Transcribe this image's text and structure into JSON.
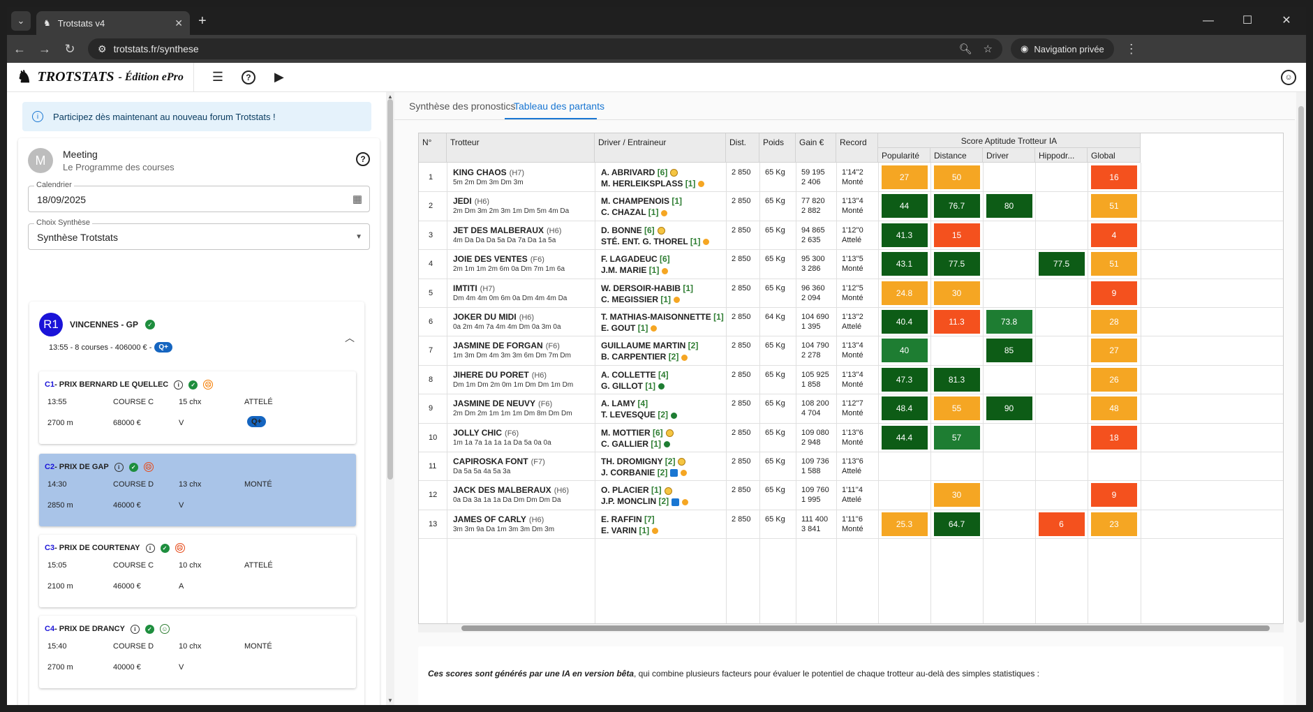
{
  "browser": {
    "tab_title": "Trotstats v4",
    "url": "trotstats.fr/synthese",
    "private_label": "Navigation privée"
  },
  "app": {
    "brand": "TROTSTATS",
    "edition": "- Édition ePro"
  },
  "info_banner": "Participez dès maintenant au nouveau forum Trotstats !",
  "meeting": {
    "avatar": "M",
    "title": "Meeting",
    "subtitle": "Le Programme des courses",
    "calendar_label": "Calendrier",
    "calendar_value": "18/09/2025",
    "synth_label": "Choix Synthèse",
    "synth_value": "Synthèse Trotstats"
  },
  "reunion": {
    "badge": "R1",
    "name": "VINCENNES - GP",
    "meta": "13:55 - 8 courses - 406000 € -",
    "q_badge": "Q+"
  },
  "courses": [
    {
      "num": "C1",
      "name": " - PRIX BERNARD LE QUELLEC",
      "mood": "☹",
      "time": "13:55",
      "type": "COURSE C",
      "chx": "15 chx",
      "disc": "ATTELÉ",
      "dist": "2700 m",
      "prize": "68000 €",
      "letter": "V",
      "q": "Q+"
    },
    {
      "num": "C2",
      "name": " - PRIX DE GAP",
      "mood": "☹",
      "time": "14:30",
      "type": "COURSE D",
      "chx": "13 chx",
      "disc": "MONTÉ",
      "dist": "2850 m",
      "prize": "46000 €",
      "letter": "V",
      "q": ""
    },
    {
      "num": "C3",
      "name": " - PRIX DE COURTENAY",
      "mood": "☹",
      "time": "15:05",
      "type": "COURSE C",
      "chx": "10 chx",
      "disc": "ATTELÉ",
      "dist": "2100 m",
      "prize": "46000 €",
      "letter": "A",
      "q": ""
    },
    {
      "num": "C4",
      "name": " - PRIX DE DRANCY",
      "mood": "☺",
      "time": "15:40",
      "type": "COURSE D",
      "chx": "10 chx",
      "disc": "MONTÉ",
      "dist": "2700 m",
      "prize": "40000 €",
      "letter": "V",
      "q": ""
    }
  ],
  "tabs": [
    "Synthèse des pronostics",
    "Tableau des partants"
  ],
  "table": {
    "headers": [
      "N°",
      "Trotteur",
      "Driver / Entraineur",
      "Dist.",
      "Poids",
      "Gain €",
      "Record"
    ],
    "group_header": "Score Aptitude Trotteur IA",
    "score_headers": [
      "Popularité",
      "Distance",
      "Driver",
      "Hippodr...",
      "Global"
    ],
    "rows": [
      {
        "n": "1",
        "horse": "KING CHAOS",
        "age": "(H7)",
        "mus": "5m 2m Dm 3m Dm 3m",
        "drv": "A. ABRIVARD",
        "drk": "[6]",
        "dm": true,
        "tr": "M. HERLEIKSPLASS",
        "trk": "[1]",
        "td": "o",
        "dist": "2 850",
        "poids": "65 Kg",
        "g1": "59 195",
        "g2": "2 406",
        "rec": "1'14''2",
        "mode": "Monté",
        "s": [
          "27",
          "50",
          "",
          "",
          "16"
        ],
        "c": [
          "#f5a623",
          "#f5a623",
          "",
          "",
          "#f4511e"
        ]
      },
      {
        "n": "2",
        "horse": "JEDI",
        "age": "(H6)",
        "mus": "2m Dm 3m 2m 3m 1m Dm 5m 4m Da",
        "drv": "M. CHAMPENOIS",
        "drk": "[1]",
        "dm": false,
        "tr": "C. CHAZAL",
        "trk": "[1]",
        "td": "o",
        "dist": "2 850",
        "poids": "65 Kg",
        "g1": "77 820",
        "g2": "2 882",
        "rec": "1'13''4",
        "mode": "Monté",
        "s": [
          "44",
          "76.7",
          "80",
          "",
          "51"
        ],
        "c": [
          "#0d5c16",
          "#0d5c16",
          "#0d5c16",
          "",
          "#f5a623"
        ]
      },
      {
        "n": "3",
        "horse": "JET DES MALBERAUX",
        "age": "(H6)",
        "mus": "4m Da Da Da 5a Da 7a Da 1a 5a",
        "drv": "D. BONNE",
        "drk": "[6]",
        "dm": true,
        "tr": "STÉ. ENT. G. THOREL",
        "trk": "[1]",
        "td": "o",
        "dist": "2 850",
        "poids": "65 Kg",
        "g1": "94 865",
        "g2": "2 635",
        "rec": "1'12''0",
        "mode": "Attelé",
        "s": [
          "41.3",
          "15",
          "",
          "",
          "4"
        ],
        "c": [
          "#0d5c16",
          "#f4511e",
          "",
          "",
          "#f4511e"
        ]
      },
      {
        "n": "4",
        "horse": "JOIE DES VENTES",
        "age": "(F6)",
        "mus": "2m 1m 1m 2m 6m 0a Dm 7m 1m 6a",
        "drv": "F. LAGADEUC",
        "drk": "[6]",
        "dm": false,
        "tr": "J.M. MARIE",
        "trk": "[1]",
        "td": "o",
        "dist": "2 850",
        "poids": "65 Kg",
        "g1": "95 300",
        "g2": "3 286",
        "rec": "1'13''5",
        "mode": "Monté",
        "s": [
          "43.1",
          "77.5",
          "",
          "77.5",
          "51"
        ],
        "c": [
          "#0d5c16",
          "#0d5c16",
          "",
          "#0d5c16",
          "#f5a623"
        ]
      },
      {
        "n": "5",
        "horse": "IMTITI",
        "age": "(H7)",
        "mus": "Dm 4m 4m 0m 6m 0a Dm 4m 4m Da",
        "drv": "W. DERSOIR-HABIB",
        "drk": "[1]",
        "dm": false,
        "tr": "C. MEGISSIER",
        "trk": "[1]",
        "td": "o",
        "dist": "2 850",
        "poids": "65 Kg",
        "g1": "96 360",
        "g2": "2 094",
        "rec": "1'12''5",
        "mode": "Monté",
        "s": [
          "24.8",
          "30",
          "",
          "",
          "9"
        ],
        "c": [
          "#f5a623",
          "#f5a623",
          "",
          "",
          "#f4511e"
        ]
      },
      {
        "n": "6",
        "horse": "JOKER DU MIDI",
        "age": "(H6)",
        "mus": "0a 2m 4m 7a 4m 4m Dm 0a 3m 0a",
        "drv": "T. MATHIAS-MAISONNETTE",
        "drk": "[1]",
        "dm": false,
        "tr": "E. GOUT",
        "trk": "[1]",
        "td": "o",
        "dist": "2 850",
        "poids": "64 Kg",
        "g1": "104 690",
        "g2": "1 395",
        "rec": "1'13''2",
        "mode": "Attelé",
        "s": [
          "40.4",
          "11.3",
          "73.8",
          "",
          "28"
        ],
        "c": [
          "#0d5c16",
          "#f4511e",
          "#1e7d32",
          "",
          "#f5a623"
        ]
      },
      {
        "n": "7",
        "horse": "JASMINE DE FORGAN",
        "age": "(F6)",
        "mus": "1m 3m Dm 4m 3m 3m 6m Dm 7m Dm",
        "drv": "GUILLAUME MARTIN",
        "drk": "[2]",
        "dm": false,
        "tr": "B. CARPENTIER",
        "trk": "[2]",
        "td": "o",
        "dist": "2 850",
        "poids": "65 Kg",
        "g1": "104 790",
        "g2": "2 278",
        "rec": "1'13''4",
        "mode": "Monté",
        "s": [
          "40",
          "",
          "85",
          "",
          "27"
        ],
        "c": [
          "#1e7d32",
          "",
          "#0d5c16",
          "",
          "#f5a623"
        ]
      },
      {
        "n": "8",
        "horse": "JIHERE DU PORET",
        "age": "(H6)",
        "mus": "Dm 1m Dm 2m 0m 1m Dm Dm 1m Dm",
        "drv": "A. COLLETTE",
        "drk": "[4]",
        "dm": false,
        "tr": "G. GILLOT",
        "trk": "[1]",
        "td": "g",
        "dist": "2 850",
        "poids": "65 Kg",
        "g1": "105 925",
        "g2": "1 858",
        "rec": "1'13''4",
        "mode": "Monté",
        "s": [
          "47.3",
          "81.3",
          "",
          "",
          "26"
        ],
        "c": [
          "#0d5c16",
          "#0d5c16",
          "",
          "",
          "#f5a623"
        ]
      },
      {
        "n": "9",
        "horse": "JASMINE DE NEUVY",
        "age": "(F6)",
        "mus": "2m Dm 2m 1m 1m 1m Dm 8m Dm Dm",
        "drv": "A. LAMY",
        "drk": "[4]",
        "dm": false,
        "tr": "T. LEVESQUE",
        "trk": "[2]",
        "td": "g",
        "dist": "2 850",
        "poids": "65 Kg",
        "g1": "108 200",
        "g2": "4 704",
        "rec": "1'12''7",
        "mode": "Monté",
        "s": [
          "48.4",
          "55",
          "90",
          "",
          "48"
        ],
        "c": [
          "#0d5c16",
          "#f5a623",
          "#0d5c16",
          "",
          "#f5a623"
        ]
      },
      {
        "n": "10",
        "horse": "JOLLY CHIC",
        "age": "(F6)",
        "mus": "1m 1a 7a 1a 1a 1a Da 5a 0a 0a",
        "drv": "M. MOTTIER",
        "drk": "[6]",
        "dm": true,
        "tr": "C. GALLIER",
        "trk": "[1]",
        "td": "g",
        "dist": "2 850",
        "poids": "65 Kg",
        "g1": "109 080",
        "g2": "2 948",
        "rec": "1'13''6",
        "mode": "Monté",
        "s": [
          "44.4",
          "57",
          "",
          "",
          "18"
        ],
        "c": [
          "#0d5c16",
          "#1e7d32",
          "",
          "",
          "#f4511e"
        ]
      },
      {
        "n": "11",
        "horse": "CAPIROSKA FONT",
        "age": "(F7)",
        "mus": "Da 5a 5a 4a 5a 3a",
        "drv": "TH. DROMIGNY",
        "drk": "[2]",
        "dm": true,
        "tr": "J. CORBANIE",
        "trk": "[2]",
        "td": "o",
        "sq": true,
        "dist": "2 850",
        "poids": "65 Kg",
        "g1": "109 736",
        "g2": "1 588",
        "rec": "1'13''6",
        "mode": "Attelé",
        "s": [
          "",
          "",
          "",
          "",
          ""
        ],
        "c": [
          "",
          "",
          "",
          "",
          ""
        ]
      },
      {
        "n": "12",
        "horse": "JACK DES MALBERAUX",
        "age": "(H6)",
        "mus": "0a Da 3a 1a 1a Da Dm Dm Dm Da",
        "drv": "O. PLACIER",
        "drk": "[1]",
        "dm": true,
        "tr": "J.P. MONCLIN",
        "trk": "[2]",
        "td": "o",
        "sq": true,
        "dist": "2 850",
        "poids": "65 Kg",
        "g1": "109 760",
        "g2": "1 995",
        "rec": "1'11''4",
        "mode": "Attelé",
        "s": [
          "",
          "30",
          "",
          "",
          "9"
        ],
        "c": [
          "",
          "#f5a623",
          "",
          "",
          "#f4511e"
        ]
      },
      {
        "n": "13",
        "horse": "JAMES OF CARLY",
        "age": "(H6)",
        "mus": "3m 3m 9a Da 1m 3m 3m Dm 3m",
        "drv": "E. RAFFIN",
        "drk": "[7]",
        "dm": false,
        "tr": "E. VARIN",
        "trk": "[1]",
        "td": "o",
        "dist": "2 850",
        "poids": "65 Kg",
        "g1": "111 400",
        "g2": "3 841",
        "rec": "1'11''6",
        "mode": "Monté",
        "s": [
          "25.3",
          "64.7",
          "",
          "6",
          "23"
        ],
        "c": [
          "#f5a623",
          "#0d5c16",
          "",
          "#f4511e",
          "#f5a623"
        ]
      }
    ]
  },
  "note": {
    "bold": "Ces scores sont générés par une IA en version bêta",
    "rest": ", qui combine plusieurs facteurs pour évaluer le potentiel de chaque trotteur au-delà des simples statistiques :"
  }
}
